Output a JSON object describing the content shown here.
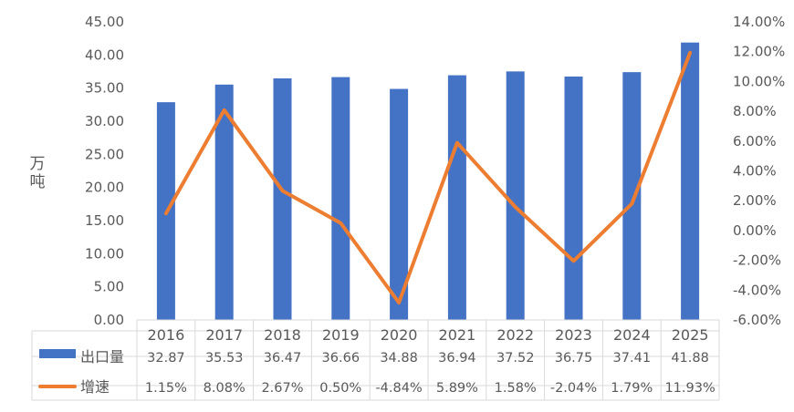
{
  "chart_data": {
    "type": "bar",
    "categories": [
      "2016",
      "2017",
      "2018",
      "2019",
      "2020",
      "2021",
      "2022",
      "2023",
      "2024",
      "2025"
    ],
    "ylabel": "万吨",
    "ylim": [
      0,
      45
    ],
    "y_ticks": [
      "0.00",
      "5.00",
      "10.00",
      "15.00",
      "20.00",
      "25.00",
      "30.00",
      "35.00",
      "40.00",
      "45.00"
    ],
    "y2lim": [
      -6,
      14
    ],
    "y2_ticks": [
      "-6.00%",
      "-4.00%",
      "-2.00%",
      "0.00%",
      "2.00%",
      "4.00%",
      "6.00%",
      "8.00%",
      "10.00%",
      "12.00%",
      "14.00%"
    ],
    "grid": false,
    "legend": "data-table",
    "series": [
      {
        "name": "出口量",
        "type": "bar",
        "axis": "left",
        "color": "#4472C4",
        "values": [
          32.87,
          35.53,
          36.47,
          36.66,
          34.88,
          36.94,
          37.52,
          36.75,
          37.41,
          41.88
        ],
        "labels": [
          "32.87",
          "35.53",
          "36.47",
          "36.66",
          "34.88",
          "36.94",
          "37.52",
          "36.75",
          "37.41",
          "41.88"
        ]
      },
      {
        "name": "增速",
        "type": "line",
        "axis": "right",
        "color": "#ED7D31",
        "values": [
          1.15,
          8.08,
          2.67,
          0.5,
          -4.84,
          5.89,
          1.58,
          -2.04,
          1.79,
          11.93
        ],
        "labels": [
          "1.15%",
          "8.08%",
          "2.67%",
          "0.50%",
          "-4.84%",
          "5.89%",
          "1.58%",
          "-2.04%",
          "1.79%",
          "11.93%"
        ]
      }
    ]
  }
}
